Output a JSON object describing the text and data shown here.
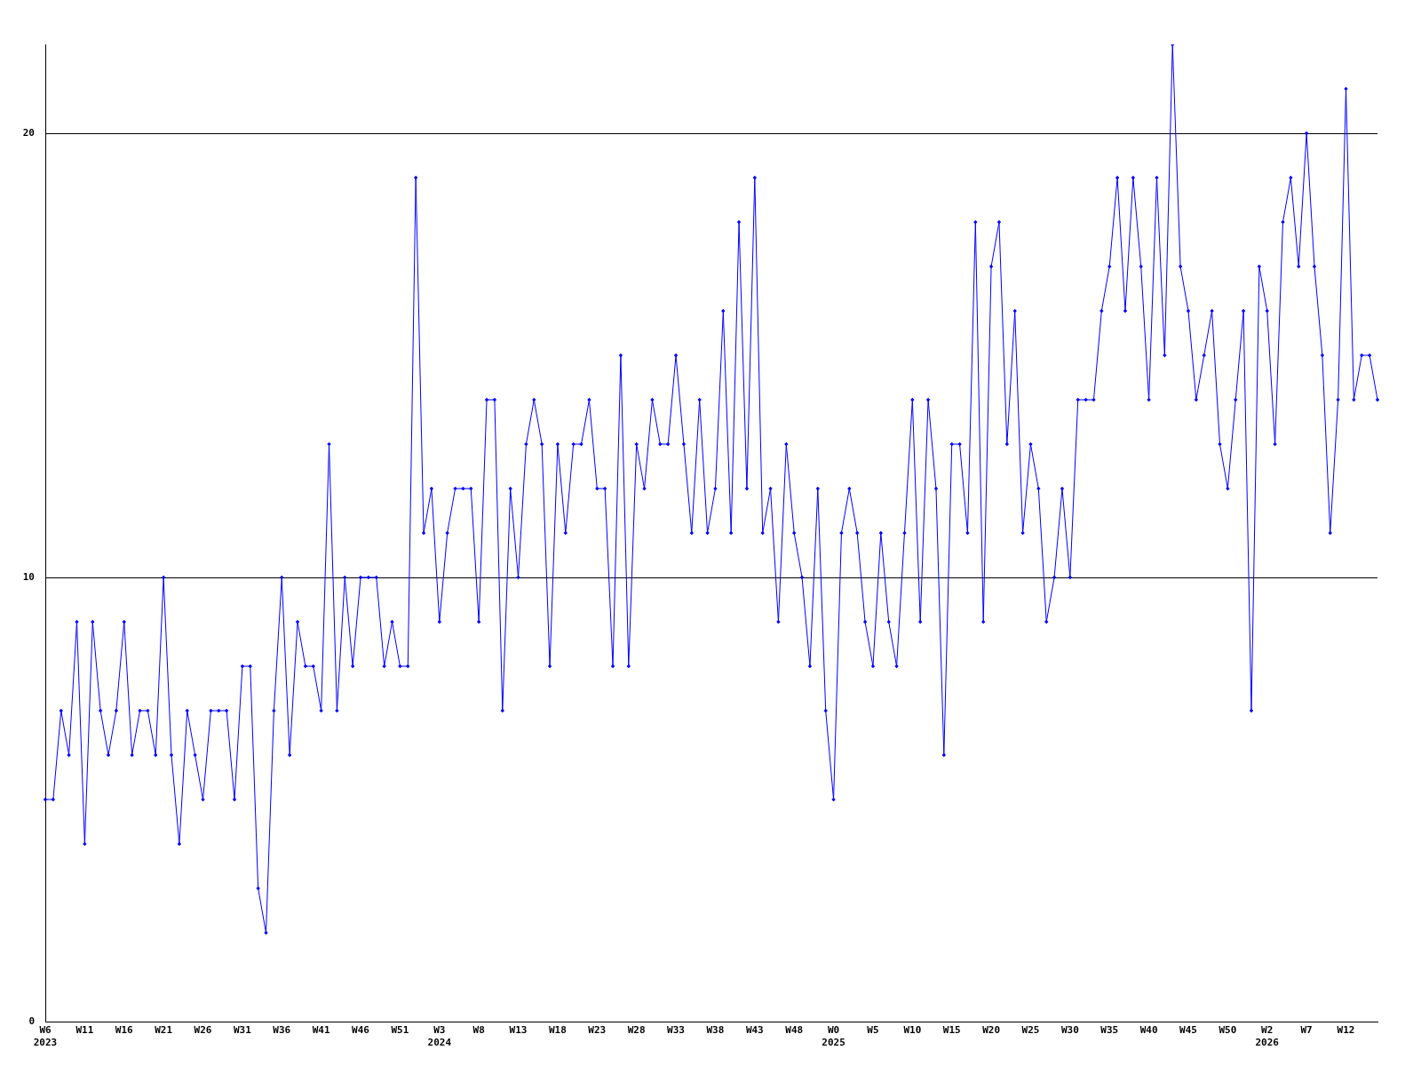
{
  "chart_data": {
    "type": "line",
    "categories": [
      "W6\n2023",
      null,
      null,
      null,
      null,
      "W11",
      null,
      null,
      null,
      null,
      "W16",
      null,
      null,
      null,
      null,
      "W21",
      null,
      null,
      null,
      null,
      "W26",
      null,
      null,
      null,
      null,
      "W31",
      null,
      null,
      null,
      null,
      "W36",
      null,
      null,
      null,
      null,
      "W41",
      null,
      null,
      null,
      null,
      "W46",
      null,
      null,
      null,
      null,
      "W51",
      null,
      null,
      null,
      null,
      "W3\n2024",
      null,
      null,
      null,
      null,
      "W8",
      null,
      null,
      null,
      null,
      "W13",
      null,
      null,
      null,
      null,
      "W18",
      null,
      null,
      null,
      null,
      "W23",
      null,
      null,
      null,
      null,
      "W28",
      null,
      null,
      null,
      null,
      "W33",
      null,
      null,
      null,
      null,
      "W38",
      null,
      null,
      null,
      null,
      "W43",
      null,
      null,
      null,
      null,
      "W48",
      null,
      null,
      null,
      null,
      "W0\n2025",
      null,
      null,
      null,
      null,
      "W5",
      null,
      null,
      null,
      null,
      "W10",
      null,
      null,
      null,
      null,
      "W15",
      null,
      null,
      null,
      null,
      "W20",
      null,
      null,
      null,
      null,
      "W25",
      null,
      null,
      null,
      null,
      "W30",
      null,
      null,
      null,
      null,
      "W35",
      null,
      null,
      null,
      null,
      "W40",
      null,
      null,
      null,
      null,
      "W45",
      null,
      null,
      null,
      null,
      "W50",
      null,
      null,
      null,
      null,
      "W2\n2026",
      null,
      null,
      null,
      null,
      "W7",
      null,
      null,
      null,
      null,
      "W12",
      null,
      null,
      null,
      null
    ],
    "series": [
      {
        "color": "#0000ff",
        "values": [
          5,
          5,
          7,
          6,
          9,
          4,
          9,
          7,
          6,
          7,
          9,
          6,
          7,
          7,
          6,
          10,
          6,
          4,
          7,
          6,
          5,
          7,
          7,
          7,
          5,
          8,
          8,
          3,
          2,
          7,
          10,
          6,
          9,
          8,
          8,
          7,
          13,
          7,
          10,
          8,
          10,
          10,
          10,
          8,
          9,
          8,
          8,
          19,
          11,
          12,
          9,
          11,
          12,
          12,
          12,
          9,
          14,
          14,
          7,
          12,
          10,
          13,
          14,
          13,
          8,
          13,
          11,
          13,
          13,
          14,
          12,
          12,
          8,
          15,
          8,
          13,
          12,
          14,
          13,
          13,
          15,
          13,
          11,
          14,
          11,
          12,
          16,
          11,
          18,
          12,
          19,
          11,
          12,
          9,
          13,
          11,
          10,
          8,
          12,
          7,
          5,
          11,
          12,
          11,
          9,
          8,
          11,
          9,
          8,
          11,
          14,
          9,
          14,
          12,
          6,
          13,
          13,
          11,
          18,
          9,
          17,
          18,
          13,
          16,
          11,
          13,
          12,
          9,
          10,
          12,
          10,
          14,
          14,
          14,
          16,
          17,
          19,
          16,
          19,
          17,
          14,
          19,
          15,
          22,
          17,
          16,
          14,
          15,
          16,
          13,
          12,
          14,
          16,
          7,
          17,
          16,
          13,
          18,
          19,
          17,
          20,
          17,
          15,
          11,
          14,
          21,
          14,
          15,
          15,
          14
        ]
      }
    ],
    "ylim": [
      0,
      22
    ],
    "yticks": [
      0,
      10,
      20
    ],
    "grid": "y",
    "legend": false,
    "marker": "diamond",
    "line_style": "solid"
  }
}
